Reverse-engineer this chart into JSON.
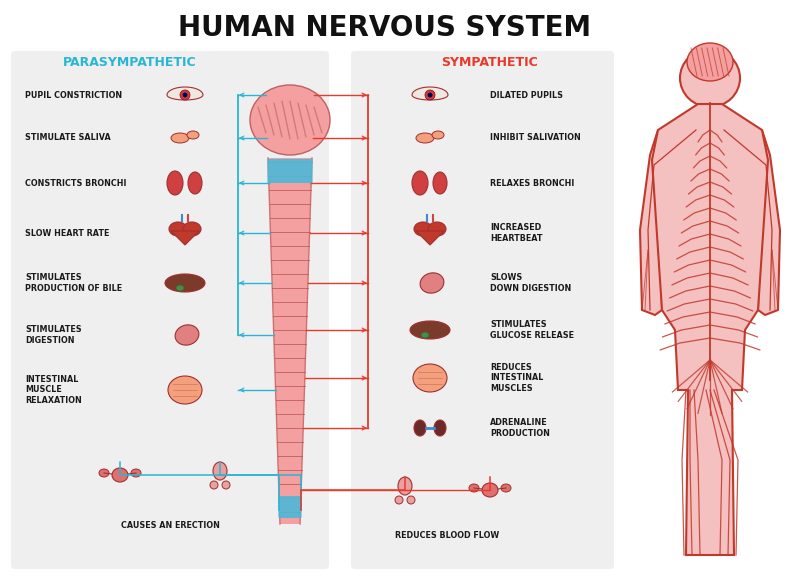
{
  "title": "HUMAN NERVOUS SYSTEM",
  "title_fontsize": 20,
  "title_color": "#111111",
  "title_fontweight": "bold",
  "parasympathetic_label": "PARASYMPATHETIC",
  "sympathetic_label": "SYMPATHETIC",
  "para_color": "#29b6d5",
  "symp_color": "#e8392a",
  "background": "#ffffff",
  "panel_bg": "#efefef",
  "para_items": [
    "PUPIL CONSTRICTION",
    "STIMULATE SALIVA",
    "CONSTRICTS BRONCHI",
    "SLOW HEART RATE",
    "STIMULATES\nPRODUCTION OF BILE",
    "STIMULATES\nDIGESTION",
    "INTESTINAL\nMUSCLE\nRELAXATION",
    "CAUSES AN ERECTION"
  ],
  "symp_items": [
    "DILATED PUPILS",
    "INHIBIT SALIVATION",
    "RELAXES BRONCHI",
    "INCREASED\nHEARTBEAT",
    "SLOWS\nDOWN DIGESTION",
    "STIMULATES\nGLUCOSE RELEASE",
    "REDUCES\nINTESTINAL\nMUSCLES",
    "ADRENALINE\nPRODUCTION",
    "REDUCES BLOOD FLOW"
  ],
  "spine_color": "#f4a0a0",
  "spine_dark": "#c06060",
  "nerve_color": "#c0392b",
  "body_fill": "#f5c0c0",
  "label_fontsize": 5.8,
  "section_fontsize": 9.0
}
